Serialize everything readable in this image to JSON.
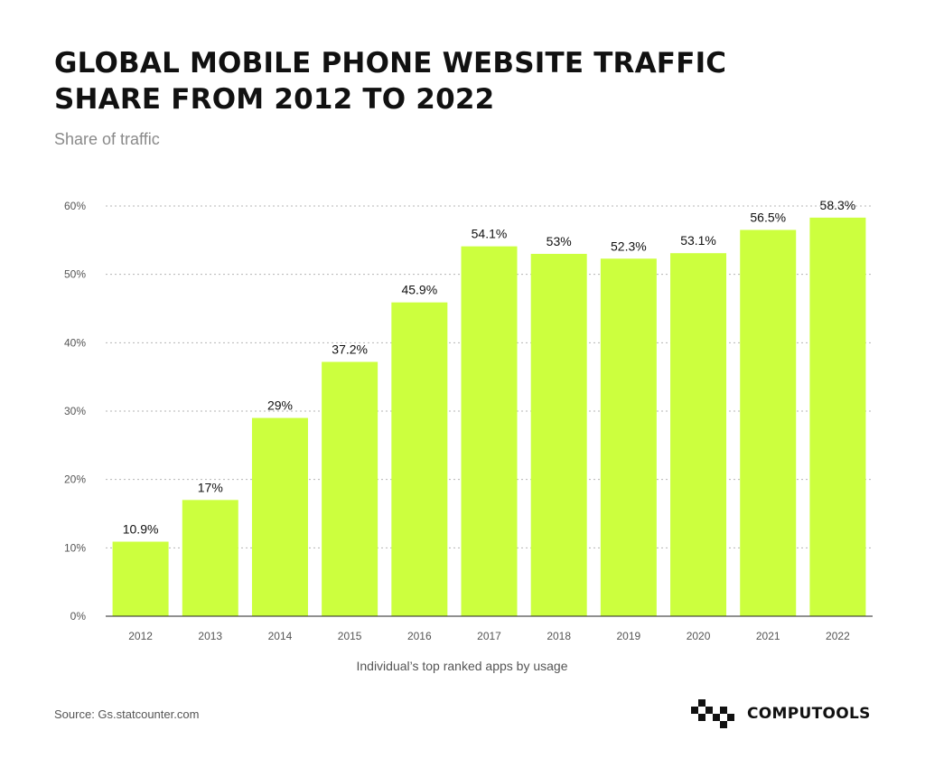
{
  "title_lines": [
    "GLOBAL MOBILE PHONE WEBSITE TRAFFIC",
    "SHARE FROM 2012 TO 2022"
  ],
  "subtitle": "Share of traffic",
  "source": "Source: Gs.statcounter.com",
  "brand": {
    "logo_text": "COMPUTOOLS",
    "logo_icon": "computools-logo-icon"
  },
  "colors": {
    "bar": "#CCFF3E",
    "grid": "#b5b5b5",
    "axis": "#222222",
    "tick_text": "#555555",
    "label_text": "#111111"
  },
  "chart_data": {
    "type": "bar",
    "title": "GLOBAL MOBILE PHONE WEBSITE TRAFFIC SHARE FROM 2012 TO 2022",
    "ylabel": "Share of traffic",
    "xlabel": "Individual’s top ranked apps by usage",
    "categories": [
      "2012",
      "2013",
      "2014",
      "2015",
      "2016",
      "2017",
      "2018",
      "2019",
      "2020",
      "2021",
      "2022"
    ],
    "values": [
      10.9,
      17,
      29,
      37.2,
      45.9,
      54.1,
      53,
      52.3,
      53.1,
      56.5,
      58.3
    ],
    "value_labels": [
      "10.9%",
      "17%",
      "29%",
      "37.2%",
      "45.9%",
      "54.1%",
      "53%",
      "52.3%",
      "53.1%",
      "56.5%",
      "58.3%"
    ],
    "ylim": [
      0,
      60
    ],
    "yticks": [
      0,
      10,
      20,
      30,
      40,
      50,
      60
    ],
    "ytick_labels": [
      "0%",
      "10%",
      "20%",
      "30%",
      "40%",
      "50%",
      "60%"
    ],
    "grid": true,
    "legend": "none"
  }
}
